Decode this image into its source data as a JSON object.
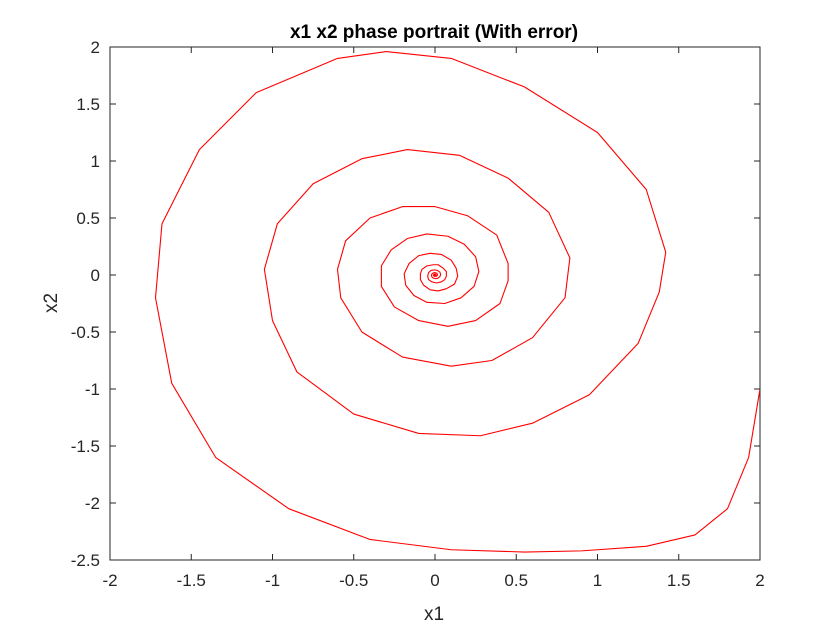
{
  "chart_data": {
    "type": "line",
    "title": "x1 x2 phase portrait (With error)",
    "xlabel": "x1",
    "ylabel": "x2",
    "xlim": [
      -2,
      2
    ],
    "ylim": [
      -2.5,
      2
    ],
    "xticks": [
      -2,
      -1.5,
      -1,
      -0.5,
      0,
      0.5,
      1,
      1.5,
      2
    ],
    "yticks": [
      -2.5,
      -2,
      -1.5,
      -1,
      -0.5,
      0,
      0.5,
      1,
      1.5,
      2
    ],
    "xtick_labels": [
      "-2",
      "-1.5",
      "-1",
      "-0.5",
      "0",
      "0.5",
      "1",
      "1.5",
      "2"
    ],
    "ytick_labels": [
      "-2.5",
      "-2",
      "-1.5",
      "-1",
      "-0.5",
      "0",
      "0.5",
      "1",
      "1.5",
      "2"
    ],
    "grid": false,
    "box": true,
    "series": [
      {
        "color": "#ff0000",
        "points": [
          [
            2.0,
            -1.0
          ],
          [
            1.93,
            -1.6
          ],
          [
            1.8,
            -2.05
          ],
          [
            1.6,
            -2.28
          ],
          [
            1.3,
            -2.38
          ],
          [
            0.9,
            -2.42
          ],
          [
            0.55,
            -2.43
          ],
          [
            0.1,
            -2.41
          ],
          [
            -0.4,
            -2.32
          ],
          [
            -0.9,
            -2.05
          ],
          [
            -1.35,
            -1.6
          ],
          [
            -1.62,
            -0.95
          ],
          [
            -1.72,
            -0.2
          ],
          [
            -1.68,
            0.45
          ],
          [
            -1.45,
            1.1
          ],
          [
            -1.1,
            1.6
          ],
          [
            -0.6,
            1.9
          ],
          [
            -0.3,
            1.96
          ],
          [
            0.1,
            1.9
          ],
          [
            0.55,
            1.65
          ],
          [
            1.0,
            1.25
          ],
          [
            1.3,
            0.75
          ],
          [
            1.42,
            0.2
          ],
          [
            1.38,
            -0.15
          ],
          [
            1.25,
            -0.6
          ],
          [
            0.95,
            -1.05
          ],
          [
            0.6,
            -1.3
          ],
          [
            0.28,
            -1.41
          ],
          [
            -0.1,
            -1.39
          ],
          [
            -0.5,
            -1.22
          ],
          [
            -0.85,
            -0.85
          ],
          [
            -1.0,
            -0.4
          ],
          [
            -1.05,
            0.05
          ],
          [
            -0.97,
            0.45
          ],
          [
            -0.75,
            0.8
          ],
          [
            -0.45,
            1.02
          ],
          [
            -0.17,
            1.1
          ],
          [
            0.15,
            1.05
          ],
          [
            0.45,
            0.85
          ],
          [
            0.7,
            0.55
          ],
          [
            0.83,
            0.15
          ],
          [
            0.8,
            -0.2
          ],
          [
            0.6,
            -0.55
          ],
          [
            0.35,
            -0.75
          ],
          [
            0.1,
            -0.8
          ],
          [
            -0.2,
            -0.72
          ],
          [
            -0.45,
            -0.5
          ],
          [
            -0.58,
            -0.2
          ],
          [
            -0.6,
            0.05
          ],
          [
            -0.55,
            0.3
          ],
          [
            -0.4,
            0.5
          ],
          [
            -0.2,
            0.6
          ],
          [
            0.0,
            0.6
          ],
          [
            0.2,
            0.52
          ],
          [
            0.38,
            0.35
          ],
          [
            0.45,
            0.1
          ],
          [
            0.45,
            -0.05
          ],
          [
            0.4,
            -0.25
          ],
          [
            0.25,
            -0.4
          ],
          [
            0.08,
            -0.45
          ],
          [
            -0.1,
            -0.4
          ],
          [
            -0.25,
            -0.28
          ],
          [
            -0.33,
            -0.1
          ],
          [
            -0.33,
            0.08
          ],
          [
            -0.27,
            0.22
          ],
          [
            -0.17,
            0.32
          ],
          [
            -0.05,
            0.36
          ],
          [
            0.08,
            0.34
          ],
          [
            0.18,
            0.27
          ],
          [
            0.25,
            0.16
          ],
          [
            0.27,
            0.03
          ],
          [
            0.24,
            -0.1
          ],
          [
            0.16,
            -0.2
          ],
          [
            0.06,
            -0.25
          ],
          [
            -0.05,
            -0.24
          ],
          [
            -0.13,
            -0.18
          ],
          [
            -0.18,
            -0.09
          ],
          [
            -0.19,
            0.01
          ],
          [
            -0.16,
            0.1
          ],
          [
            -0.1,
            0.17
          ],
          [
            -0.03,
            0.19
          ],
          [
            0.04,
            0.18
          ],
          [
            0.1,
            0.13
          ],
          [
            0.13,
            0.06
          ],
          [
            0.14,
            -0.01
          ],
          [
            0.12,
            -0.08
          ],
          [
            0.07,
            -0.12
          ],
          [
            0.02,
            -0.14
          ],
          [
            -0.03,
            -0.13
          ],
          [
            -0.07,
            -0.09
          ],
          [
            -0.09,
            -0.04
          ],
          [
            -0.09,
            0.01
          ],
          [
            -0.08,
            0.05
          ],
          [
            -0.05,
            0.08
          ],
          [
            -0.01,
            0.09
          ],
          [
            0.02,
            0.09
          ],
          [
            0.05,
            0.06
          ],
          [
            0.07,
            0.03
          ],
          [
            0.07,
            -0.01
          ],
          [
            0.06,
            -0.04
          ],
          [
            0.04,
            -0.06
          ],
          [
            0.01,
            -0.07
          ],
          [
            -0.02,
            -0.06
          ],
          [
            -0.04,
            -0.04
          ],
          [
            -0.045,
            -0.01
          ],
          [
            -0.04,
            0.02
          ],
          [
            -0.025,
            0.04
          ],
          [
            -0.005,
            0.045
          ],
          [
            0.015,
            0.04
          ],
          [
            0.03,
            0.025
          ],
          [
            0.035,
            0.005
          ],
          [
            0.03,
            -0.015
          ],
          [
            0.018,
            -0.028
          ],
          [
            0.003,
            -0.032
          ],
          [
            -0.012,
            -0.026
          ],
          [
            -0.02,
            -0.014
          ],
          [
            -0.022,
            0.0
          ],
          [
            -0.017,
            0.013
          ],
          [
            -0.007,
            0.02
          ],
          [
            0.004,
            0.02
          ],
          [
            0.012,
            0.014
          ],
          [
            0.015,
            0.004
          ],
          [
            0.013,
            -0.006
          ],
          [
            0.006,
            -0.012
          ],
          [
            -0.002,
            -0.012
          ],
          [
            -0.008,
            -0.007
          ],
          [
            -0.01,
            0.0
          ],
          [
            -0.007,
            0.006
          ],
          [
            -0.002,
            0.008
          ],
          [
            0.003,
            0.007
          ],
          [
            0.006,
            0.003
          ],
          [
            0.006,
            -0.002
          ],
          [
            0.003,
            -0.005
          ],
          [
            -0.001,
            -0.005
          ],
          [
            -0.003,
            -0.002
          ],
          [
            -0.003,
            0.001
          ],
          [
            -0.001,
            0.003
          ],
          [
            0.001,
            0.002
          ],
          [
            0.0,
            0.0
          ]
        ]
      }
    ]
  }
}
